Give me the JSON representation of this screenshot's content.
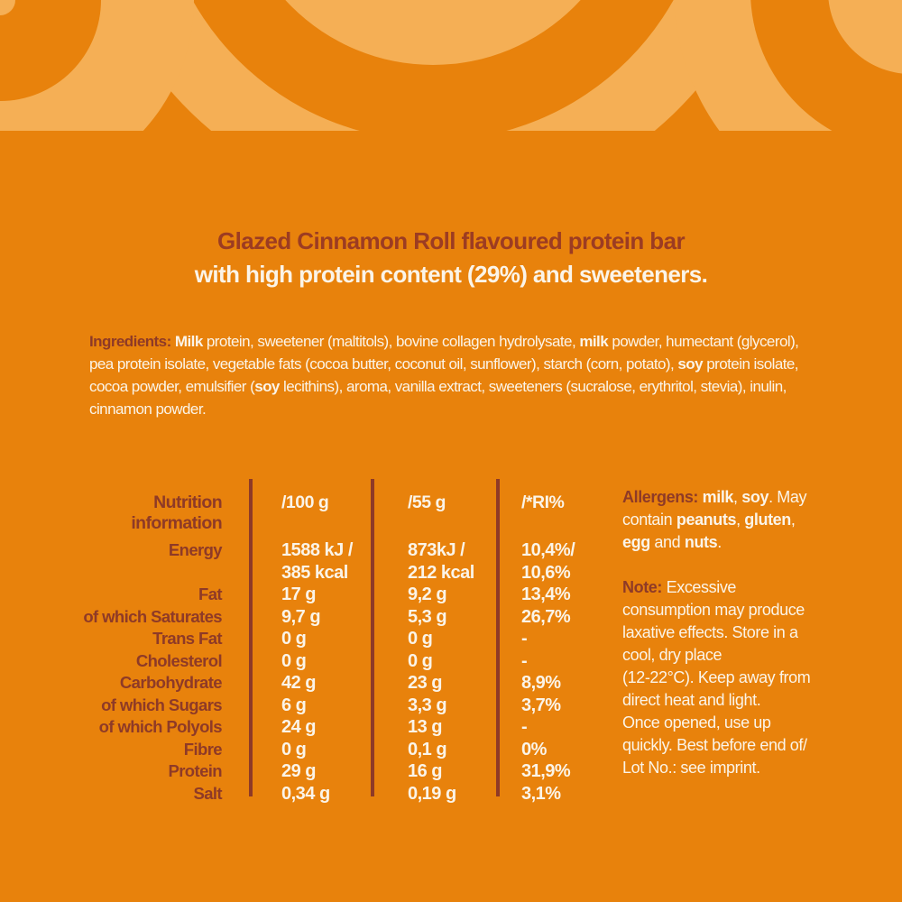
{
  "colors": {
    "background": "#E8820C",
    "arc_pale": "#F5AF55",
    "text_cream": "#FBF4E8",
    "text_dark_red": "#8E3A27",
    "title_red": "#9C3C22"
  },
  "title": {
    "line1": "Glazed Cinnamon Roll flavoured protein bar",
    "line2": "with high protein content (29%) and sweeteners."
  },
  "ingredients": {
    "lines": [
      [
        {
          "t": "Ingredients: ",
          "b": true,
          "c": "red"
        },
        {
          "t": "Milk ",
          "b": true
        },
        {
          "t": "protein, sweetener (maltitols), bovine collagen hydrolysate, "
        },
        {
          "t": "milk ",
          "b": true
        },
        {
          "t": "powder, humectant (glycerol),"
        }
      ],
      [
        {
          "t": "pea protein isolate, vegetable fats (cocoa butter, coconut oil, sunflower), starch (corn, potato), "
        },
        {
          "t": "soy ",
          "b": true
        },
        {
          "t": "protein isolate,"
        }
      ],
      [
        {
          "t": "cocoa powder, emulsifier ("
        },
        {
          "t": "soy",
          "b": true
        },
        {
          "t": " lecithins), aroma, vanilla extract, sweeteners (sucralose, erythritol, stevia), inulin,"
        }
      ],
      [
        {
          "t": "cinnamon powder."
        }
      ]
    ]
  },
  "nutrition": {
    "header": {
      "label_line1": "Nutrition",
      "label_line2": "information",
      "col_100g": "/100 g",
      "col_55g": "/55 g",
      "col_ri": "/*RI%"
    },
    "rows": [
      {
        "label": "Energy",
        "per100": "1588 kJ /",
        "per55": "873kJ /",
        "ri": "10,4%/"
      },
      {
        "label": "",
        "per100": "385 kcal",
        "per55": "212 kcal",
        "ri": "10,6%"
      },
      {
        "label": "Fat",
        "per100": "17 g",
        "per55": "9,2 g",
        "ri": "13,4%"
      },
      {
        "label": "of which Saturates",
        "per100": "9,7 g",
        "per55": "5,3 g",
        "ri": "26,7%"
      },
      {
        "label": "Trans Fat",
        "per100": "0 g",
        "per55": "0 g",
        "ri": "-"
      },
      {
        "label": "Cholesterol",
        "per100": "0 g",
        "per55": "0 g",
        "ri": "-"
      },
      {
        "label": "Carbohydrate",
        "per100": "42 g",
        "per55": "23 g",
        "ri": "8,9%"
      },
      {
        "label": "of which Sugars",
        "per100": "6 g",
        "per55": "3,3 g",
        "ri": "3,7%"
      },
      {
        "label": "of which Polyols",
        "per100": "24 g",
        "per55": "13 g",
        "ri": "-"
      },
      {
        "label": "Fibre",
        "per100": "0 g",
        "per55": "0,1 g",
        "ri": "0%"
      },
      {
        "label": "Protein",
        "per100": "29 g",
        "per55": "16 g",
        "ri": "31,9%"
      },
      {
        "label": "Salt",
        "per100": "0,34 g",
        "per55": "0,19 g",
        "ri": "3,1%"
      }
    ]
  },
  "allergens": {
    "lines": [
      [
        {
          "t": "Allergens: ",
          "b": true,
          "c": "red"
        },
        {
          "t": "milk",
          "b": true
        },
        {
          "t": ", "
        },
        {
          "t": "soy",
          "b": true
        },
        {
          "t": ". May"
        }
      ],
      [
        {
          "t": "contain "
        },
        {
          "t": "peanuts",
          "b": true
        },
        {
          "t": ", "
        },
        {
          "t": "gluten",
          "b": true
        },
        {
          "t": ","
        }
      ],
      [
        {
          "t": "egg",
          "b": true
        },
        {
          "t": " and "
        },
        {
          "t": "nuts",
          "b": true
        },
        {
          "t": "."
        }
      ]
    ]
  },
  "note": {
    "lines": [
      [
        {
          "t": "Note: ",
          "b": true,
          "c": "red"
        },
        {
          "t": "Excessive"
        }
      ],
      [
        {
          "t": "consumption may produce"
        }
      ],
      [
        {
          "t": "laxative effects. Store in a"
        }
      ],
      [
        {
          "t": "cool, dry place"
        }
      ],
      [
        {
          "t": "(12-22°C). Keep away from"
        }
      ],
      [
        {
          "t": "direct heat and light."
        }
      ],
      [
        {
          "t": "Once opened, use up"
        }
      ],
      [
        {
          "t": "quickly. Best before end of/"
        }
      ],
      [
        {
          "t": "Lot No.: see imprint."
        }
      ]
    ]
  }
}
